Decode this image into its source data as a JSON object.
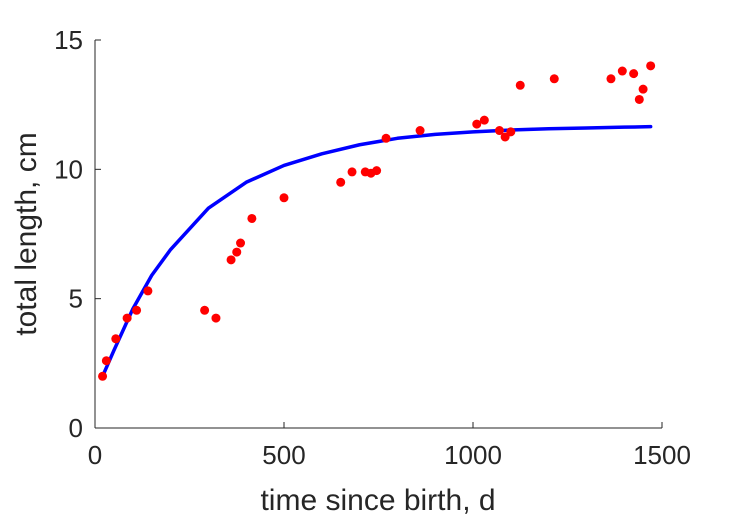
{
  "chart_data": {
    "type": "scatter",
    "title": "",
    "xlabel": "time since birth, d",
    "ylabel": "total length, cm",
    "xlim": [
      0,
      1500
    ],
    "ylim": [
      0,
      15
    ],
    "xticks": [
      0,
      500,
      1000,
      1500
    ],
    "yticks": [
      0,
      5,
      10,
      15
    ],
    "grid": false,
    "legend": "none",
    "series": [
      {
        "kind": "points",
        "color": "#ff0000",
        "points": [
          [
            20,
            2.0
          ],
          [
            30,
            2.6
          ],
          [
            55,
            3.45
          ],
          [
            85,
            4.25
          ],
          [
            110,
            4.55
          ],
          [
            140,
            5.3
          ],
          [
            290,
            4.55
          ],
          [
            320,
            4.25
          ],
          [
            360,
            6.5
          ],
          [
            375,
            6.8
          ],
          [
            385,
            7.15
          ],
          [
            415,
            8.1
          ],
          [
            500,
            8.9
          ],
          [
            650,
            9.5
          ],
          [
            680,
            9.9
          ],
          [
            715,
            9.9
          ],
          [
            730,
            9.85
          ],
          [
            745,
            9.95
          ],
          [
            770,
            11.2
          ],
          [
            860,
            11.5
          ],
          [
            1010,
            11.75
          ],
          [
            1030,
            11.9
          ],
          [
            1070,
            11.5
          ],
          [
            1085,
            11.25
          ],
          [
            1100,
            11.45
          ],
          [
            1125,
            13.25
          ],
          [
            1215,
            13.5
          ],
          [
            1365,
            13.5
          ],
          [
            1395,
            13.8
          ],
          [
            1425,
            13.7
          ],
          [
            1440,
            12.7
          ],
          [
            1450,
            13.1
          ],
          [
            1470,
            14.0
          ]
        ]
      },
      {
        "kind": "line",
        "color": "#0000ff",
        "x": [
          20,
          50,
          100,
          150,
          200,
          300,
          400,
          500,
          600,
          700,
          800,
          900,
          1000,
          1100,
          1200,
          1300,
          1400,
          1470
        ],
        "y": [
          2.0,
          3.0,
          4.6,
          5.9,
          6.9,
          8.5,
          9.5,
          10.15,
          10.6,
          10.95,
          11.2,
          11.35,
          11.45,
          11.52,
          11.57,
          11.6,
          11.63,
          11.65
        ]
      }
    ]
  }
}
